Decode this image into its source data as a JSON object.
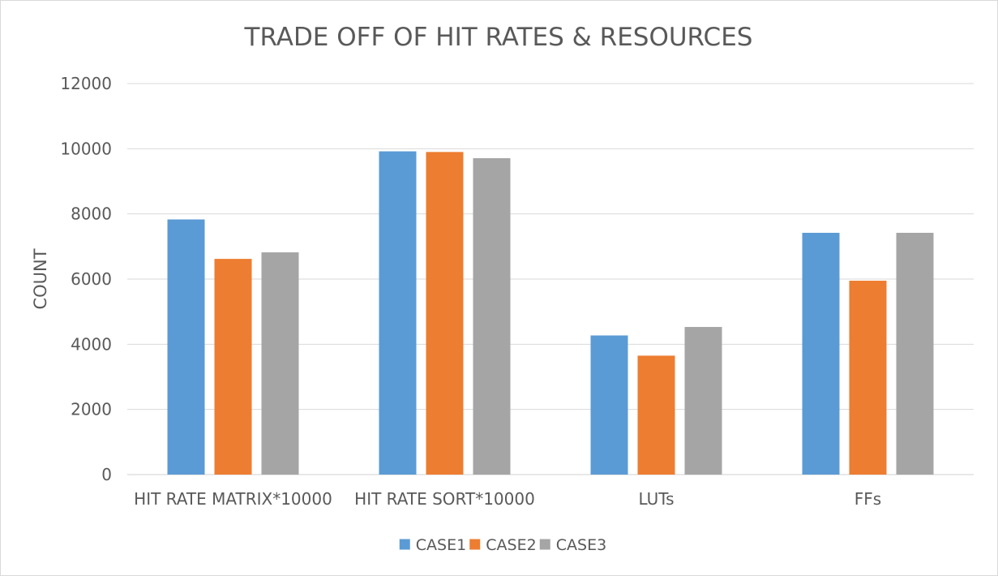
{
  "chart_data": {
    "type": "bar",
    "title": "TRADE OFF OF HIT RATES & RESOURCES",
    "xlabel": "",
    "ylabel": "COUNT",
    "ylim": [
      0,
      12000
    ],
    "yticks": [
      0,
      2000,
      4000,
      6000,
      8000,
      10000,
      12000
    ],
    "grid": true,
    "legend_position": "bottom",
    "categories": [
      "HIT RATE MATRIX*10000",
      "HIT RATE SORT*10000",
      "LUTs",
      "FFs"
    ],
    "series": [
      {
        "name": "CASE1",
        "color": "#5b9bd5",
        "values": [
          7830,
          9920,
          4270,
          7420
        ]
      },
      {
        "name": "CASE2",
        "color": "#ed7d31",
        "values": [
          6620,
          9900,
          3650,
          5950
        ]
      },
      {
        "name": "CASE3",
        "color": "#a5a5a5",
        "values": [
          6820,
          9710,
          4530,
          7420
        ]
      }
    ]
  }
}
